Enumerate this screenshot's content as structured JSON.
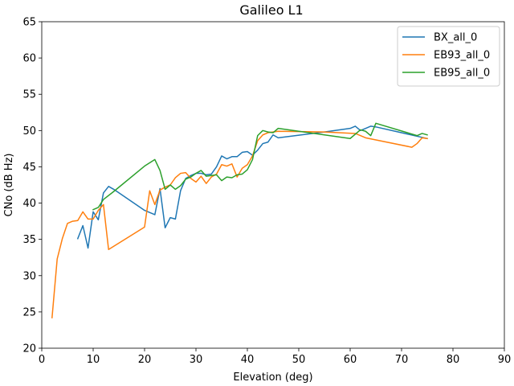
{
  "chart_data": {
    "type": "line",
    "title": "Galileo L1",
    "xlabel": "Elevation (deg)",
    "ylabel": "CNo (dB Hz)",
    "xlim": [
      0,
      90
    ],
    "ylim": [
      20,
      65
    ],
    "xticks": [
      0,
      10,
      20,
      30,
      40,
      50,
      60,
      70,
      80,
      90
    ],
    "yticks": [
      20,
      25,
      30,
      35,
      40,
      45,
      50,
      55,
      60,
      65
    ],
    "grid": false,
    "legend_position": "top-right",
    "series": [
      {
        "name": "BX_all_0",
        "color": "#1f77b4",
        "points": [
          [
            7,
            35.1
          ],
          [
            8,
            36.9
          ],
          [
            9,
            33.8
          ],
          [
            10,
            38.8
          ],
          [
            11,
            37.7
          ],
          [
            12,
            41.4
          ],
          [
            13,
            42.3
          ],
          [
            14,
            41.9
          ],
          [
            20,
            39.0
          ],
          [
            22,
            38.4
          ],
          [
            23,
            42.0
          ],
          [
            24,
            36.6
          ],
          [
            25,
            38.0
          ],
          [
            26,
            37.8
          ],
          [
            27,
            41.7
          ],
          [
            28,
            43.4
          ],
          [
            29,
            43.8
          ],
          [
            30,
            44.1
          ],
          [
            31,
            44.1
          ],
          [
            32,
            43.9
          ],
          [
            33,
            44.0
          ],
          [
            34,
            45.0
          ],
          [
            35,
            46.5
          ],
          [
            36,
            46.1
          ],
          [
            37,
            46.4
          ],
          [
            38,
            46.4
          ],
          [
            39,
            47.0
          ],
          [
            40,
            47.1
          ],
          [
            41,
            46.6
          ],
          [
            42,
            47.3
          ],
          [
            43,
            48.2
          ],
          [
            44,
            48.4
          ],
          [
            45,
            49.4
          ],
          [
            46,
            49.0
          ],
          [
            55,
            49.8
          ],
          [
            60,
            50.3
          ],
          [
            61,
            50.6
          ],
          [
            62,
            50.0
          ],
          [
            63,
            50.3
          ],
          [
            64,
            50.6
          ],
          [
            65,
            50.5
          ],
          [
            75,
            48.9
          ]
        ]
      },
      {
        "name": "EB93_all_0",
        "color": "#ff7f0e",
        "points": [
          [
            2,
            24.2
          ],
          [
            3,
            32.3
          ],
          [
            4,
            35.1
          ],
          [
            5,
            37.2
          ],
          [
            6,
            37.5
          ],
          [
            7,
            37.6
          ],
          [
            8,
            38.8
          ],
          [
            9,
            37.8
          ],
          [
            10,
            37.8
          ],
          [
            11,
            39.0
          ],
          [
            12,
            39.8
          ],
          [
            13,
            33.6
          ],
          [
            20,
            36.7
          ],
          [
            21,
            41.7
          ],
          [
            22,
            39.8
          ],
          [
            23,
            41.8
          ],
          [
            24,
            42.2
          ],
          [
            25,
            42.5
          ],
          [
            26,
            43.5
          ],
          [
            27,
            44.1
          ],
          [
            28,
            44.2
          ],
          [
            29,
            43.4
          ],
          [
            30,
            42.9
          ],
          [
            31,
            43.7
          ],
          [
            32,
            42.7
          ],
          [
            33,
            43.6
          ],
          [
            34,
            44.0
          ],
          [
            35,
            45.3
          ],
          [
            36,
            45.1
          ],
          [
            37,
            45.4
          ],
          [
            38,
            43.6
          ],
          [
            39,
            44.8
          ],
          [
            40,
            45.3
          ],
          [
            41,
            46.5
          ],
          [
            42,
            48.6
          ],
          [
            43,
            49.4
          ],
          [
            44,
            49.7
          ],
          [
            45,
            49.8
          ],
          [
            46,
            49.9
          ],
          [
            55,
            49.8
          ],
          [
            61,
            49.6
          ],
          [
            63,
            49.0
          ],
          [
            72,
            47.7
          ],
          [
            73,
            48.2
          ],
          [
            74,
            49.0
          ],
          [
            75,
            48.9
          ]
        ]
      },
      {
        "name": "EB95_all_0",
        "color": "#2ca02c",
        "points": [
          [
            10,
            39.1
          ],
          [
            11,
            39.4
          ],
          [
            12,
            40.5
          ],
          [
            14,
            41.6
          ],
          [
            20,
            45.1
          ],
          [
            22,
            46.0
          ],
          [
            23,
            44.5
          ],
          [
            24,
            41.9
          ],
          [
            25,
            42.5
          ],
          [
            26,
            41.9
          ],
          [
            27,
            42.4
          ],
          [
            28,
            43.3
          ],
          [
            29,
            43.6
          ],
          [
            30,
            44.1
          ],
          [
            31,
            44.5
          ],
          [
            32,
            43.7
          ],
          [
            33,
            43.8
          ],
          [
            34,
            43.9
          ],
          [
            35,
            43.1
          ],
          [
            36,
            43.6
          ],
          [
            37,
            43.5
          ],
          [
            38,
            43.9
          ],
          [
            39,
            44.0
          ],
          [
            40,
            44.6
          ],
          [
            41,
            46.0
          ],
          [
            42,
            49.3
          ],
          [
            43,
            50.0
          ],
          [
            44,
            49.8
          ],
          [
            45,
            49.7
          ],
          [
            46,
            50.3
          ],
          [
            60,
            48.9
          ],
          [
            62,
            50.1
          ],
          [
            63,
            49.9
          ],
          [
            64,
            49.3
          ],
          [
            65,
            51.0
          ],
          [
            73,
            49.3
          ],
          [
            74,
            49.6
          ],
          [
            75,
            49.4
          ]
        ]
      }
    ]
  }
}
